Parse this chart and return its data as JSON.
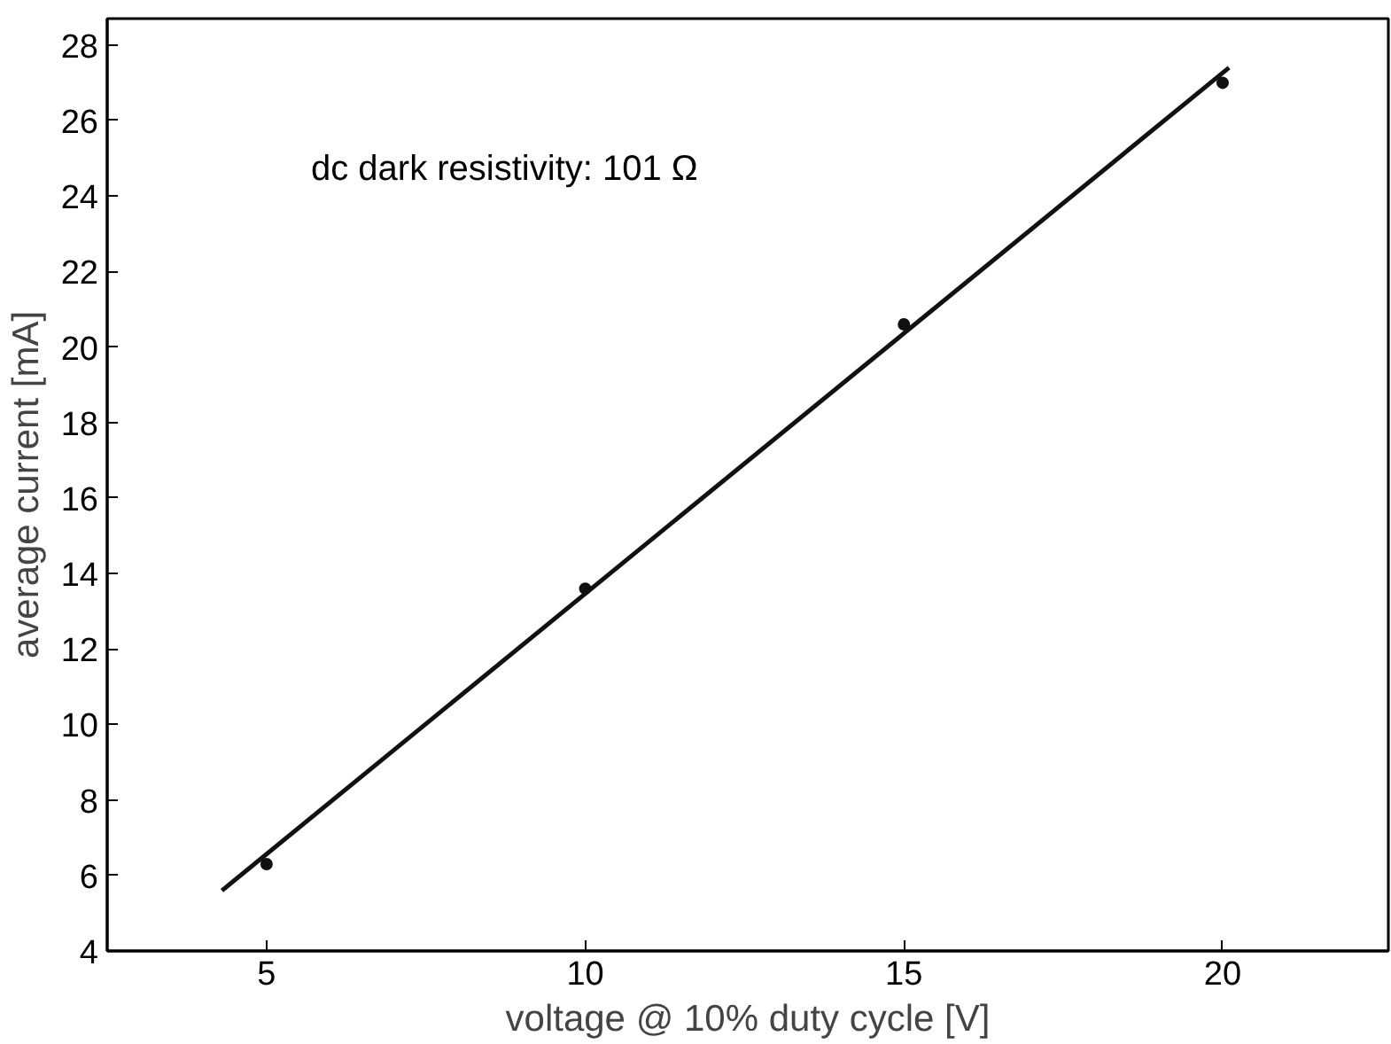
{
  "chart_data": {
    "type": "scatter",
    "xlabel": "voltage @ 10% duty cycle [V]",
    "ylabel": "average current [mA]",
    "annotations": [
      "dc dark resistivity: 101 Ω"
    ],
    "x": [
      5,
      10,
      15,
      20
    ],
    "series": [
      {
        "color": "#111111",
        "values": [
          6.3,
          13.6,
          20.6,
          27.0
        ],
        "marker": "circle"
      },
      {
        "type": "line",
        "color": "#111111",
        "x": [
          4.3,
          20.1
        ],
        "values": [
          5.6,
          27.4
        ],
        "marker": "none",
        "line_style": "solid"
      }
    ],
    "xlim": [
      2.5,
      22.6
    ],
    "ylim": [
      4,
      28.7
    ],
    "xticks": [
      5,
      10,
      15,
      20
    ],
    "yticks": [
      4,
      6,
      8,
      10,
      12,
      14,
      16,
      18,
      20,
      22,
      24,
      26,
      28
    ],
    "grid": false
  }
}
